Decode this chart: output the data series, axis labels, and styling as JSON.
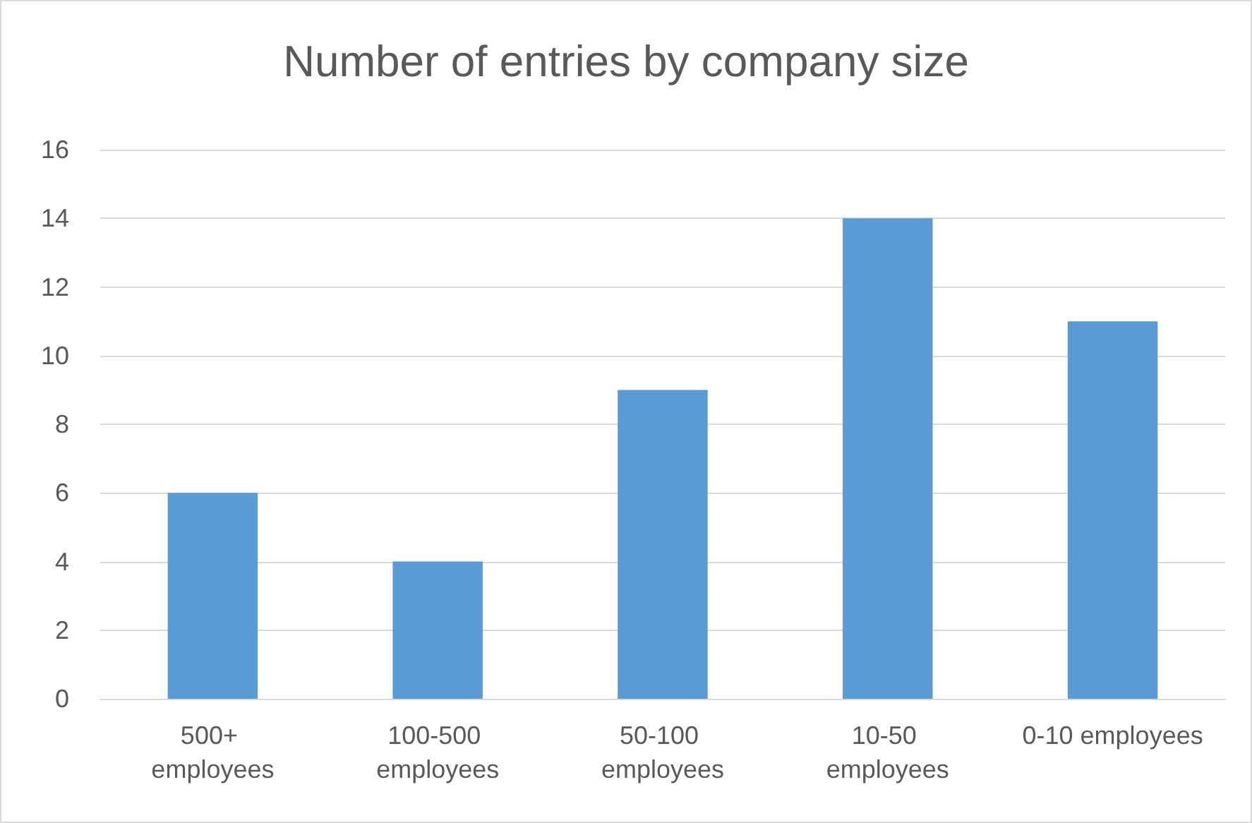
{
  "chart_data": {
    "type": "bar",
    "title": "Number of entries by company size",
    "categories": [
      "500+ employees",
      "100-500 employees",
      "50-100 employees",
      "10-50 employees",
      "0-10 employees"
    ],
    "values": [
      6,
      4,
      9,
      14,
      11
    ],
    "color": "#5b9bd5",
    "ylim": [
      0,
      16
    ],
    "yticks": [
      0,
      2,
      4,
      6,
      8,
      10,
      12,
      14,
      16
    ],
    "grid": "y"
  }
}
